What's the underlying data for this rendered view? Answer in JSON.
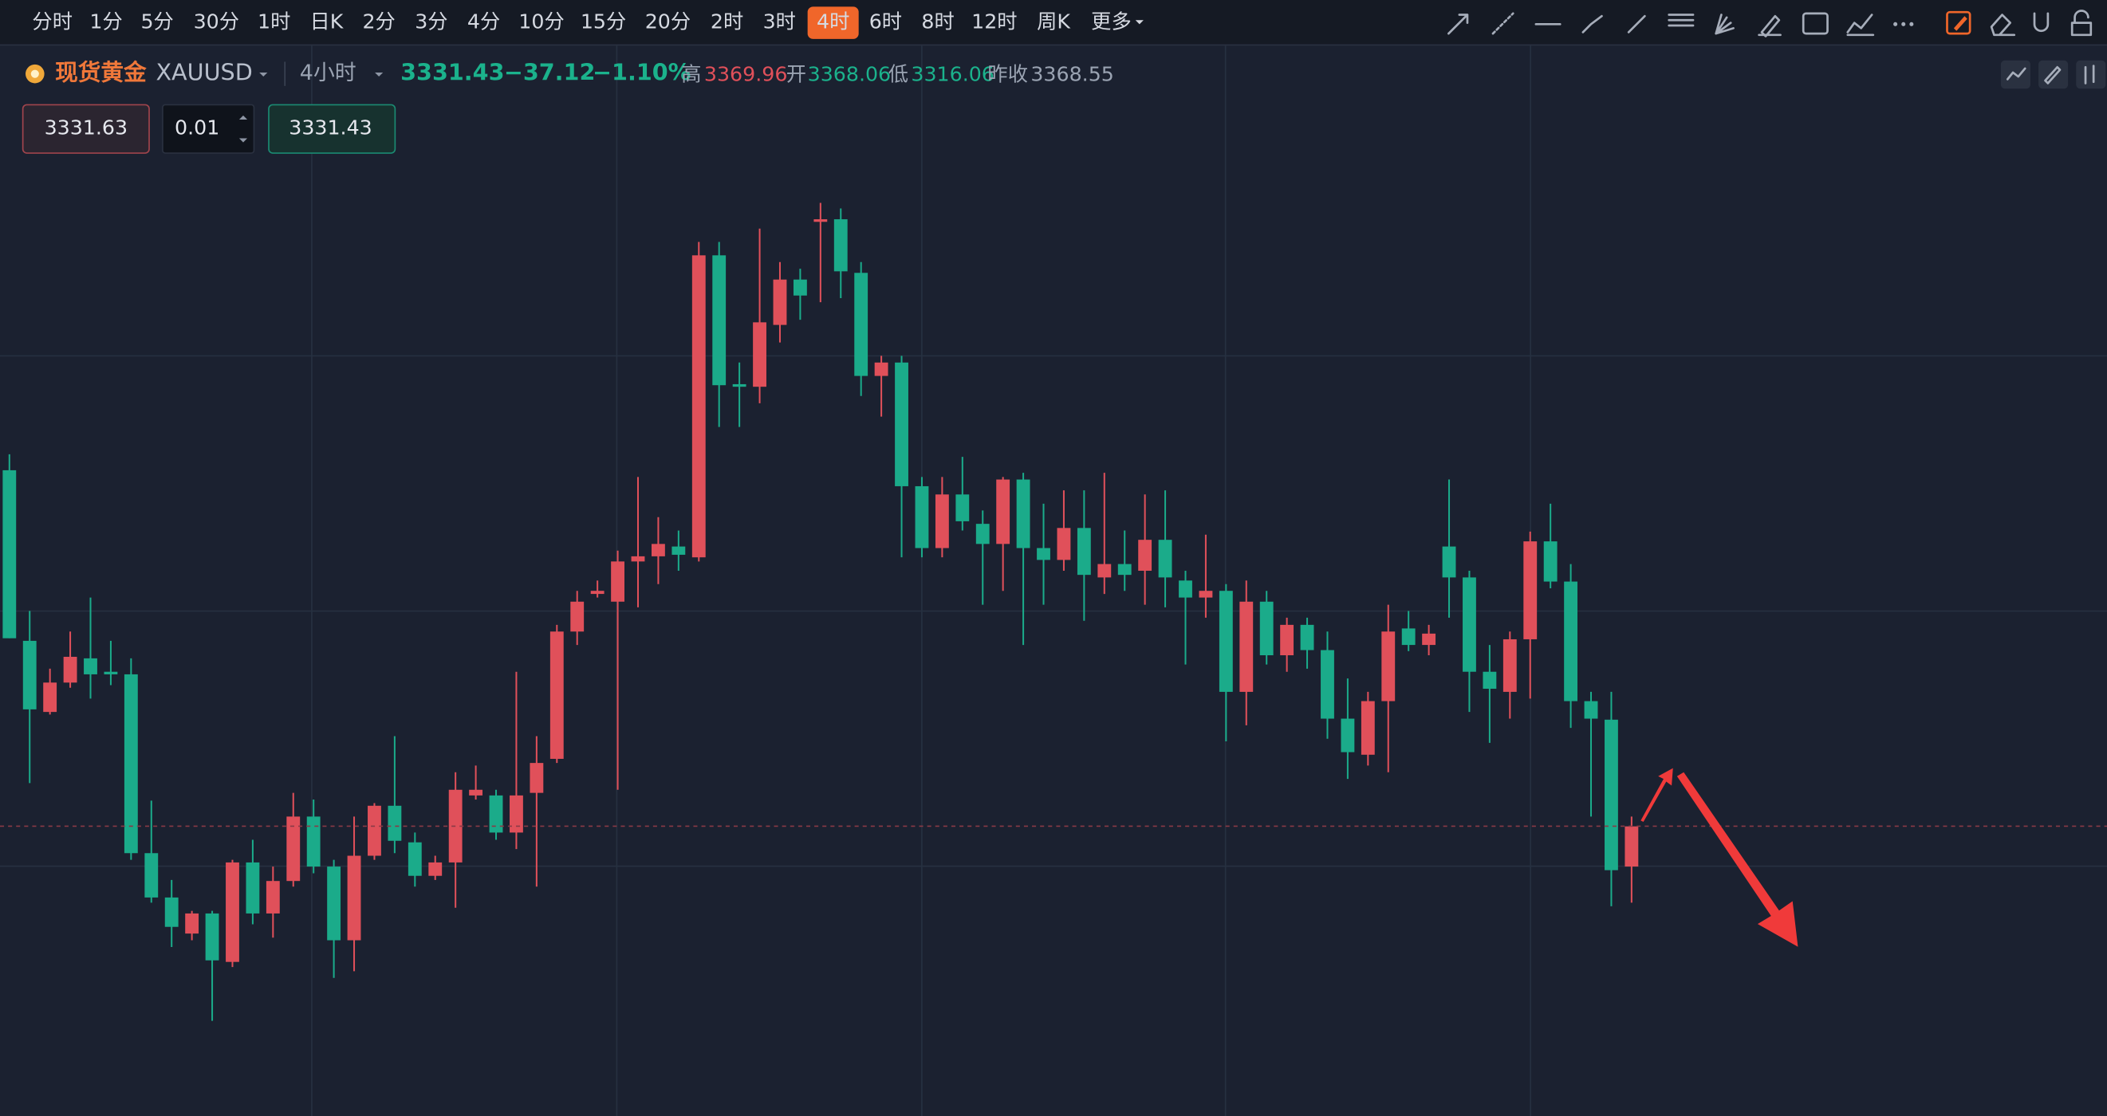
{
  "toolbar": {
    "periods": [
      "分时",
      "1分",
      "5分",
      "30分",
      "1时",
      "日K",
      "2分",
      "3分",
      "4分",
      "10分",
      "15分",
      "20分",
      "2时",
      "3时",
      "4时",
      "6时",
      "8时",
      "12时",
      "周K"
    ],
    "active": 14,
    "more": "更多"
  },
  "header": {
    "name": "现货黄金",
    "symbol": "XAUUSD",
    "interval": "4小时",
    "price": 3331.43,
    "change": "−37.12",
    "change_pct": "−1.10%",
    "high_label": "高",
    "high": 3369.96,
    "open_label": "开",
    "open": 3368.06,
    "low_label": "低",
    "low": 3316.06,
    "prev_close_label": "昨收",
    "prev_close": 3368.55
  },
  "order": {
    "sell": 3331.63,
    "lot": 0.01,
    "buy": 3331.43
  },
  "chart_data": {
    "type": "candlestick",
    "up_color": "#e0505a",
    "down_color": "#1bab8a",
    "ylim": [
      3275.2,
      3472.2
    ],
    "grid": true,
    "high": [
      3403.6,
      3373.2,
      3362.0,
      3369.2,
      3375.8,
      3367.4,
      3364.0,
      3336.4,
      3321.0,
      3315.0,
      3315.0,
      3324.9,
      3328.8,
      3323.6,
      3337.9,
      3336.6,
      3324.9,
      3333.3,
      3335.9,
      3348.9,
      3330.2,
      3325.7,
      3341.9,
      3343.2,
      3338.5,
      3361.4,
      3348.9,
      3370.5,
      3377.1,
      3379.1,
      3384.9,
      3399.2,
      3391.4,
      3388.8,
      3444.8,
      3444.8,
      3421.4,
      3447.4,
      3440.9,
      3439.6,
      3452.37,
      3451.3,
      3440.9,
      3422.7,
      3422.7,
      3399.2,
      3399.2,
      3403.1,
      3392.7,
      3399.2,
      3400.0,
      3394.0,
      3396.6,
      3396.6,
      3400.0,
      3388.8,
      3395.8,
      3396.6,
      3381.0,
      3388.0,
      3378.4,
      3379.1,
      3377.1,
      3371.9,
      3371.9,
      3369.2,
      3360.1,
      3357.5,
      3374.4,
      3373.2,
      3370.5,
      3398.7,
      3381.0,
      3366.6,
      3369.2,
      3388.6,
      3394.0,
      3382.3,
      3357.5,
      3357.5,
      3333.3
    ],
    "low": [
      3367.9,
      3339.8,
      3353.1,
      3358.3,
      3356.2,
      3358.8,
      3324.9,
      3316.6,
      3308.0,
      3309.3,
      3293.67,
      3304.1,
      3312.4,
      3309.8,
      3319.7,
      3322.3,
      3302.0,
      3303.3,
      3324.9,
      3326.2,
      3319.7,
      3321.0,
      3315.6,
      3336.6,
      3328.8,
      3327.0,
      3319.7,
      3343.7,
      3366.6,
      3375.8,
      3338.5,
      3373.9,
      3378.4,
      3381.0,
      3382.8,
      3408.9,
      3408.9,
      3413.5,
      3425.3,
      3429.7,
      3433.1,
      3433.9,
      3414.9,
      3410.9,
      3383.6,
      3383.6,
      3383.6,
      3388.8,
      3374.4,
      3377.1,
      3366.6,
      3374.4,
      3381.0,
      3371.3,
      3376.5,
      3377.1,
      3374.4,
      3373.9,
      3362.8,
      3371.9,
      3347.9,
      3351.0,
      3362.8,
      3361.4,
      3362.0,
      3348.4,
      3340.6,
      3343.2,
      3341.9,
      3365.4,
      3364.6,
      3371.9,
      3353.6,
      3347.6,
      3352.3,
      3356.2,
      3377.6,
      3350.5,
      3333.3,
      3315.9,
      3316.6
    ],
    "open": [
      3400.5,
      3367.4,
      3353.6,
      3359.3,
      3364.0,
      3361.4,
      3360.9,
      3326.2,
      3317.6,
      3310.6,
      3314.5,
      3305.1,
      3324.4,
      3314.5,
      3320.8,
      3333.3,
      3323.6,
      3309.3,
      3325.7,
      3335.4,
      3328.3,
      3321.8,
      3324.4,
      3337.4,
      3337.4,
      3330.2,
      3337.9,
      3344.5,
      3369.2,
      3376.5,
      3375.0,
      3382.8,
      3383.8,
      3385.7,
      3383.6,
      3442.2,
      3417.2,
      3416.7,
      3428.7,
      3437.5,
      3448.7,
      3449.2,
      3438.8,
      3418.8,
      3421.4,
      3397.4,
      3385.4,
      3395.8,
      3390.1,
      3386.2,
      3398.7,
      3385.4,
      3383.1,
      3389.3,
      3379.7,
      3382.3,
      3381.0,
      3387.0,
      3379.1,
      3375.8,
      3377.1,
      3357.5,
      3375.0,
      3364.6,
      3370.5,
      3365.6,
      3352.3,
      3345.3,
      3355.7,
      3369.8,
      3366.6,
      3385.7,
      3379.7,
      3361.4,
      3357.5,
      3367.7,
      3386.7,
      3378.9,
      3355.7,
      3352.1,
      3323.6
    ],
    "close": [
      3367.9,
      3354.1,
      3359.3,
      3364.3,
      3360.9,
      3360.9,
      3326.2,
      3317.6,
      3311.9,
      3314.5,
      3305.4,
      3324.4,
      3314.5,
      3320.8,
      3333.3,
      3323.6,
      3309.3,
      3325.7,
      3335.4,
      3328.6,
      3321.8,
      3324.4,
      3338.5,
      3338.5,
      3330.2,
      3337.4,
      3343.7,
      3369.2,
      3375.0,
      3377.1,
      3382.8,
      3383.8,
      3386.2,
      3384.1,
      3442.2,
      3417.0,
      3416.7,
      3429.2,
      3437.5,
      3434.4,
      3449.2,
      3439.1,
      3418.8,
      3421.4,
      3397.4,
      3385.4,
      3395.8,
      3390.6,
      3386.2,
      3398.7,
      3385.4,
      3383.1,
      3389.3,
      3380.2,
      3382.3,
      3380.2,
      3387.0,
      3379.7,
      3375.8,
      3377.1,
      3357.5,
      3375.0,
      3364.6,
      3370.5,
      3365.6,
      3352.3,
      3345.8,
      3355.7,
      3369.2,
      3366.6,
      3368.8,
      3379.7,
      3361.4,
      3358.1,
      3367.7,
      3386.7,
      3378.9,
      3355.7,
      3352.3,
      3322.9,
      3331.4
    ]
  }
}
